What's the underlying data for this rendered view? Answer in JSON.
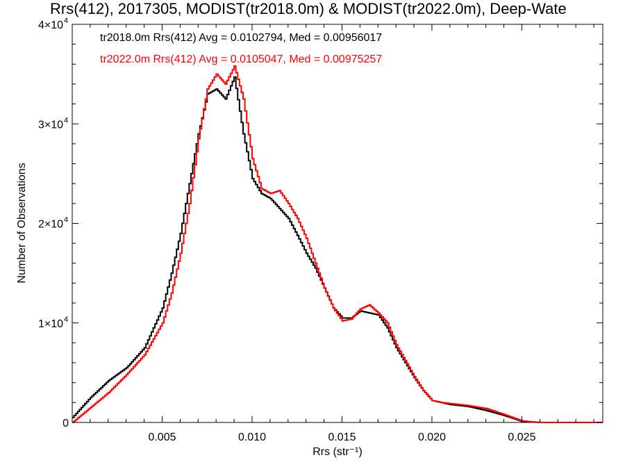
{
  "chart_data": {
    "type": "line",
    "title": "Rrs(412), 2017305, MODIST(tr2018.0m) & MODIST(tr2022.0m), Deep-Wate",
    "xlabel": "Rrs (str⁻¹)",
    "ylabel": "Number of Observations",
    "xlim": [
      0.0,
      0.0295
    ],
    "ylim": [
      0,
      40000
    ],
    "x_ticks": [
      0.005,
      0.01,
      0.015,
      0.02,
      0.025
    ],
    "x_tick_labels": [
      "0.005",
      "0.010",
      "0.015",
      "0.020",
      "0.025"
    ],
    "y_ticks": [
      0,
      10000,
      20000,
      30000,
      40000
    ],
    "y_tick_labels": [
      {
        "mantissa": "0",
        "exp": ""
      },
      {
        "mantissa": "1×10",
        "exp": "4"
      },
      {
        "mantissa": "2×10",
        "exp": "4"
      },
      {
        "mantissa": "3×10",
        "exp": "4"
      },
      {
        "mantissa": "4×10",
        "exp": "4"
      }
    ],
    "step": true,
    "grid": false,
    "annotations": [
      {
        "text": "tr2018.0m Rrs(412) Avg = 0.0102794, Med = 0.00956017",
        "color": "#000000"
      },
      {
        "text": "tr2022.0m Rrs(412) Avg = 0.0105047, Med = 0.00975257",
        "color": "#ff0000"
      }
    ],
    "series": [
      {
        "color": "#000000",
        "x": [
          0.0,
          0.001,
          0.002,
          0.003,
          0.004,
          0.005,
          0.0055,
          0.006,
          0.0065,
          0.007,
          0.0075,
          0.008,
          0.0085,
          0.009,
          0.0095,
          0.01,
          0.0105,
          0.011,
          0.0115,
          0.012,
          0.0125,
          0.013,
          0.0135,
          0.014,
          0.0145,
          0.015,
          0.0155,
          0.016,
          0.0165,
          0.017,
          0.0175,
          0.018,
          0.0185,
          0.019,
          0.0195,
          0.02,
          0.0205,
          0.021,
          0.022,
          0.023,
          0.024,
          0.025,
          0.026,
          0.028,
          0.0295
        ],
        "y": [
          500,
          2500,
          4200,
          5500,
          7500,
          11500,
          15000,
          19000,
          24000,
          29000,
          33000,
          33500,
          32500,
          34700,
          29000,
          24500,
          23000,
          22500,
          21500,
          20500,
          18800,
          17000,
          15500,
          13500,
          11500,
          10500,
          10500,
          11200,
          11000,
          10800,
          9500,
          7500,
          6000,
          4500,
          3200,
          2200,
          2000,
          1800,
          1600,
          1200,
          700,
          100,
          0,
          0,
          0
        ]
      },
      {
        "color": "#ff0000",
        "x": [
          0.0,
          0.001,
          0.002,
          0.003,
          0.004,
          0.005,
          0.0055,
          0.006,
          0.0065,
          0.007,
          0.0075,
          0.008,
          0.0085,
          0.009,
          0.0095,
          0.01,
          0.0105,
          0.011,
          0.0115,
          0.012,
          0.0125,
          0.013,
          0.0135,
          0.014,
          0.0145,
          0.015,
          0.0155,
          0.016,
          0.0165,
          0.017,
          0.0175,
          0.018,
          0.0185,
          0.019,
          0.0195,
          0.02,
          0.0205,
          0.021,
          0.022,
          0.023,
          0.024,
          0.025,
          0.026,
          0.028,
          0.0295
        ],
        "y": [
          0,
          1500,
          3000,
          4800,
          6800,
          10000,
          13000,
          17000,
          22000,
          28500,
          33500,
          35000,
          34000,
          35800,
          32500,
          26500,
          23500,
          23000,
          23300,
          22000,
          20500,
          18500,
          16000,
          13500,
          11500,
          10200,
          10400,
          11400,
          11800,
          11000,
          10000,
          7800,
          6200,
          4600,
          3200,
          2200,
          2000,
          1900,
          1700,
          1400,
          800,
          150,
          0,
          0,
          0
        ]
      }
    ]
  }
}
